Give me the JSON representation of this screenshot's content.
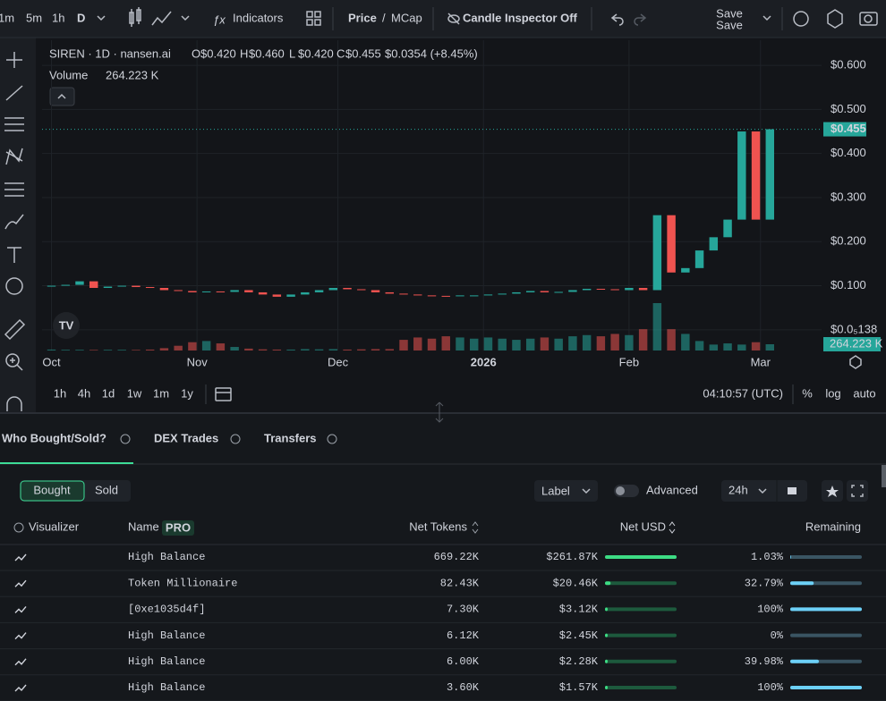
{
  "toolbar": {
    "intervals": [
      "1m",
      "5m",
      "1h",
      "D"
    ],
    "indicators": "Indicators",
    "price_toggle": [
      "Price",
      "/",
      "MCap"
    ],
    "candle_inspector": "Candle Inspector Off",
    "save": "Save",
    "save_status": "Save"
  },
  "chart_data": {
    "type": "candlestick",
    "symbol": "SIREN · 1D · nansen.ai",
    "legend": [
      {
        "key": "O",
        "value": 0.42,
        "label": "$0.420"
      },
      {
        "key": "H",
        "value": 0.46,
        "label": "$0.460"
      },
      {
        "key": "L",
        "value": 0.42,
        "label": "$0.420"
      },
      {
        "key": "C",
        "value": 0.455,
        "label": "$0.455"
      }
    ],
    "change": "$0.0354 (+8.45%)",
    "volume_title": "Volume",
    "volume_value": "264.223 K",
    "x": [
      0,
      3,
      6,
      9,
      12,
      15,
      18,
      21,
      24,
      27,
      30,
      33,
      36,
      39,
      42,
      45,
      48,
      51,
      54,
      57,
      60,
      63,
      66,
      69,
      72,
      75,
      78,
      81,
      84,
      87,
      90,
      93,
      96,
      99,
      102,
      105,
      108,
      111,
      114,
      117,
      120,
      123,
      126,
      129,
      132,
      135,
      138,
      141,
      144,
      147,
      150,
      153
    ],
    "close": [
      0.1,
      0.102,
      0.11,
      0.095,
      0.098,
      0.1,
      0.097,
      0.095,
      0.09,
      0.088,
      0.085,
      0.087,
      0.086,
      0.09,
      0.085,
      0.08,
      0.075,
      0.08,
      0.085,
      0.09,
      0.095,
      0.092,
      0.09,
      0.085,
      0.082,
      0.08,
      0.078,
      0.077,
      0.076,
      0.078,
      0.078,
      0.08,
      0.082,
      0.085,
      0.088,
      0.085,
      0.086,
      0.09,
      0.093,
      0.092,
      0.09,
      0.095,
      0.09,
      0.26,
      0.13,
      0.14,
      0.18,
      0.21,
      0.25,
      0.45,
      0.25,
      0.455
    ],
    "volume": [
      40,
      30,
      30,
      25,
      30,
      30,
      25,
      40,
      100,
      200,
      350,
      400,
      300,
      150,
      80,
      50,
      40,
      40,
      60,
      50,
      60,
      40,
      50,
      60,
      60,
      450,
      550,
      500,
      600,
      550,
      500,
      550,
      500,
      450,
      500,
      550,
      500,
      600,
      650,
      600,
      700,
      650,
      900,
      2000,
      900,
      700,
      400,
      250,
      300,
      250,
      350,
      264.223
    ],
    "xlim": [
      -2,
      164
    ],
    "xticks": [
      {
        "value": 0,
        "label": "Oct"
      },
      {
        "value": 31,
        "label": "Nov"
      },
      {
        "value": 61,
        "label": "Dec"
      },
      {
        "value": 92,
        "label": "2026"
      },
      {
        "value": 123,
        "label": "Feb"
      },
      {
        "value": 151,
        "label": "Mar"
      }
    ],
    "ylim": [
      -0.047,
      0.657
    ],
    "yticks": [
      {
        "value": 0.6,
        "label": "$0.600"
      },
      {
        "value": 0.5,
        "label": "$0.500"
      },
      {
        "value": 0.4,
        "label": "$0.400"
      },
      {
        "value": 0.3,
        "label": "$0.300"
      },
      {
        "value": 0.2,
        "label": "$0.200"
      },
      {
        "value": 0.1,
        "label": "$0.100"
      },
      {
        "value": 1.38e-06,
        "label": "$0.0₅138"
      }
    ],
    "volume_lim": [
      0,
      2000
    ],
    "last_price": {
      "value": 0.455,
      "label": "$0.455"
    },
    "last_volume": {
      "value": 264.223,
      "label": "264.223 K"
    },
    "up_color": "#26a69a",
    "down_color": "#ef5350",
    "grid": true
  },
  "chart_footer": {
    "ranges": [
      "1h",
      "4h",
      "1d",
      "1w",
      "1m",
      "1y"
    ],
    "time": "04:10:57 (UTC)",
    "options": [
      "%",
      "log",
      "auto"
    ]
  },
  "tabs": [
    "Who Bought/Sold?",
    "DEX Trades",
    "Transfers"
  ],
  "filters": {
    "bought": "Bought",
    "sold": "Sold",
    "label": "Label",
    "advanced": "Advanced",
    "period": "24h"
  },
  "table": {
    "columns": [
      "Visualizer",
      "Name",
      "Net Tokens",
      "Net USD",
      "Remaining"
    ],
    "pro": "PRO",
    "rows": [
      {
        "name": "High Balance",
        "net_tokens": "669.22K",
        "net_usd": {
          "value": 261870,
          "label": "$261.87K"
        },
        "remaining": {
          "value": 1.03,
          "label": "1.03%"
        }
      },
      {
        "name": "Token Millionaire",
        "net_tokens": "82.43K",
        "net_usd": {
          "value": 20460,
          "label": "$20.46K"
        },
        "remaining": {
          "value": 32.79,
          "label": "32.79%"
        }
      },
      {
        "name": "[0xe1035d4f]",
        "net_tokens": "7.30K",
        "net_usd": {
          "value": 3120,
          "label": "$3.12K"
        },
        "remaining": {
          "value": 100,
          "label": "100%"
        }
      },
      {
        "name": "High Balance",
        "net_tokens": "6.12K",
        "net_usd": {
          "value": 2450,
          "label": "$2.45K"
        },
        "remaining": {
          "value": 0,
          "label": "0%"
        }
      },
      {
        "name": "High Balance",
        "net_tokens": "6.00K",
        "net_usd": {
          "value": 2280,
          "label": "$2.28K"
        },
        "remaining": {
          "value": 39.98,
          "label": "39.98%"
        }
      },
      {
        "name": "High Balance",
        "net_tokens": "3.60K",
        "net_usd": {
          "value": 1570,
          "label": "$1.57K"
        },
        "remaining": {
          "value": 100,
          "label": "100%"
        }
      }
    ]
  }
}
